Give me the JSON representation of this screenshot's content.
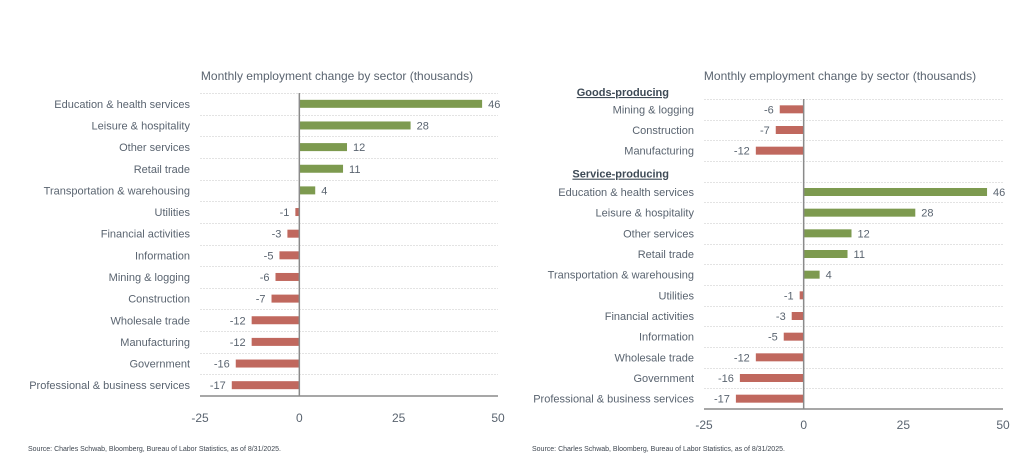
{
  "chart_data": [
    {
      "type": "bar",
      "orientation": "horizontal",
      "title": "Monthly employment change by sector (thousands)",
      "xlabel": "",
      "ylabel": "",
      "xlim": [
        -25,
        50
      ],
      "xticks": [
        "-25",
        "0",
        "25",
        "50"
      ],
      "grid": true,
      "source": "Source: Charles Schwab, Bloomberg, Bureau of Labor Statistics, as of 8/31/2025.",
      "categories": [
        "Education & health services",
        "Leisure & hospitality",
        "Other services",
        "Retail trade",
        "Transportation & warehousing",
        "Utilities",
        "Financial activities",
        "Information",
        "Mining & logging",
        "Construction",
        "Wholesale trade",
        "Manufacturing",
        "Government",
        "Professional & business services"
      ],
      "values": [
        46,
        28,
        12,
        11,
        4,
        -1,
        -3,
        -5,
        -6,
        -7,
        -12,
        -12,
        -16,
        -17
      ],
      "colors": {
        "positive": "#7d9a4f",
        "negative": "#c0685e"
      }
    },
    {
      "type": "bar",
      "orientation": "horizontal",
      "title": "Monthly employment change by sector (thousands)",
      "xlabel": "",
      "ylabel": "",
      "xlim": [
        -25,
        50
      ],
      "xticks": [
        "-25",
        "0",
        "25",
        "50"
      ],
      "grid": true,
      "source": "Source: Charles Schwab, Bloomberg, Bureau of Labor Statistics, as of 8/31/2025.",
      "groups": [
        {
          "name": "Goods-producing",
          "categories": [
            "Mining & logging",
            "Construction",
            "Manufacturing"
          ],
          "values": [
            -6,
            -7,
            -12
          ]
        },
        {
          "name": "Service-producing",
          "categories": [
            "Education & health services",
            "Leisure & hospitality",
            "Other services",
            "Retail trade",
            "Transportation & warehousing",
            "Utilities",
            "Financial activities",
            "Information",
            "Wholesale trade",
            "Government",
            "Professional & business services"
          ],
          "values": [
            46,
            28,
            12,
            11,
            4,
            -1,
            -3,
            -5,
            -12,
            -16,
            -17
          ]
        }
      ],
      "colors": {
        "positive": "#7d9a4f",
        "negative": "#c0685e"
      }
    }
  ]
}
